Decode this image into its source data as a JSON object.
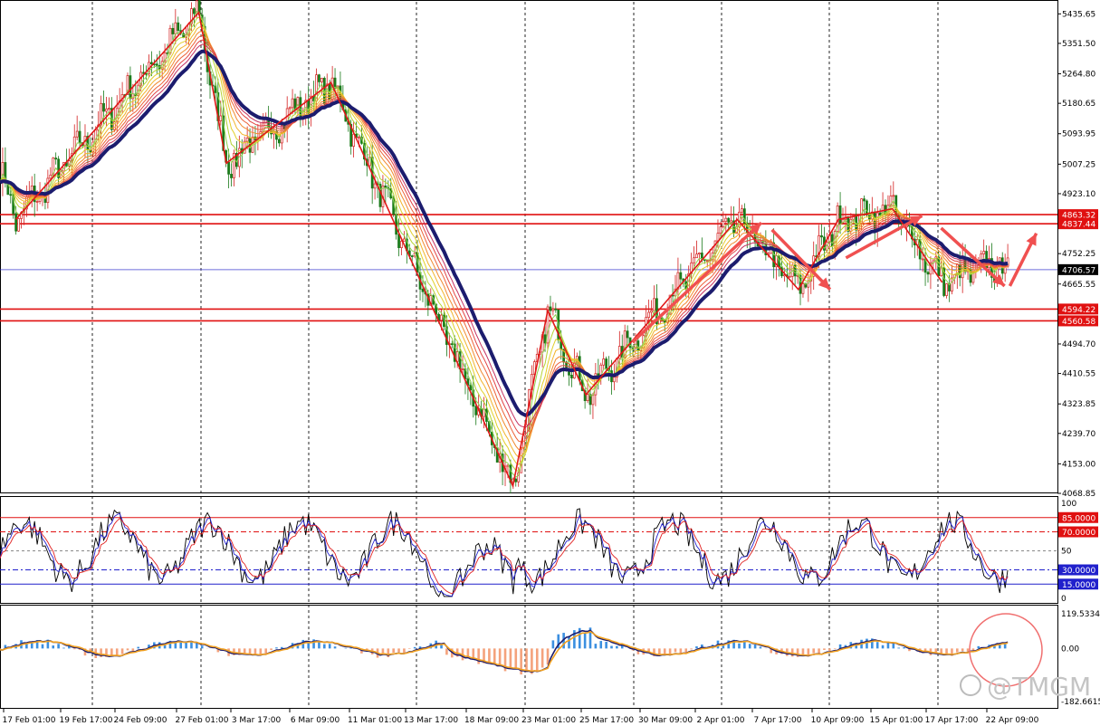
{
  "chart_data": [
    {
      "type": "candlestick",
      "panel": "price",
      "y_ticks": [
        5435.65,
        5351.5,
        5264.8,
        5180.65,
        5093.95,
        5007.25,
        4923.1,
        4837.44,
        4752.25,
        4706.57,
        4665.55,
        4594.22,
        4560.58,
        4494.7,
        4410.55,
        4323.85,
        4239.7,
        4153.0,
        4068.85
      ],
      "ylim": [
        4068.85,
        5470
      ],
      "horizontal_levels": [
        {
          "value": 4863.32,
          "label": "4863.32",
          "color": "#e01010"
        },
        {
          "value": 4837.44,
          "label": "4837.44",
          "color": "#e01010"
        },
        {
          "value": 4706.57,
          "label": "4706.57",
          "color": "#3333cc"
        },
        {
          "value": 4594.22,
          "label": "4594.22",
          "color": "#e01010"
        },
        {
          "value": 4560.58,
          "label": "4560.58",
          "color": "#e01010"
        }
      ],
      "zigzag": [
        [
          0.015,
          4850
        ],
        [
          0.188,
          5440
        ],
        [
          0.214,
          5010
        ],
        [
          0.313,
          5240
        ],
        [
          0.485,
          4090
        ],
        [
          0.518,
          4590
        ],
        [
          0.554,
          4350
        ],
        [
          0.697,
          4850
        ],
        [
          0.755,
          4650
        ],
        [
          0.793,
          4850
        ],
        [
          0.844,
          4880
        ],
        [
          0.891,
          4670
        ]
      ],
      "colors": {
        "up": "#d42020",
        "down": "#1a7a1a",
        "zigzag": "#e01818",
        "ma_slow": "#1c1c6e",
        "arrows": "#f05050"
      }
    },
    {
      "type": "line",
      "panel": "stochastic",
      "y_ticks": [
        100,
        85,
        70,
        50,
        30,
        15,
        0
      ],
      "levels": [
        {
          "value": 85,
          "label": "85.0000",
          "color": "#e01010"
        },
        {
          "value": 70,
          "label": "70.0000",
          "color": "#e01010"
        },
        {
          "value": 30,
          "label": "30.0000",
          "color": "#2020cc"
        },
        {
          "value": 15,
          "label": "15.0000",
          "color": "#2020cc"
        }
      ],
      "ylim": [
        0,
        100
      ]
    },
    {
      "type": "histogram",
      "panel": "macd",
      "y_ticks": [
        119.5334,
        0.0,
        -182.6615
      ],
      "ylim": [
        -182.6615,
        119.5334
      ]
    }
  ],
  "x_ticks": [
    "17 Feb 01:00",
    "19 Feb 17:00",
    "24 Feb 09:00",
    "27 Feb 01:00",
    "3 Mar 17:00",
    "6 Mar 09:00",
    "11 Mar 01:00",
    "13 Mar 17:00",
    "18 Mar 09:00",
    "23 Mar 01:00",
    "25 Mar 17:00",
    "30 Mar 09:00",
    "2 Apr 01:00",
    "7 Apr 17:00",
    "10 Apr 09:00",
    "15 Apr 01:00",
    "17 Apr 17:00",
    "22 Apr 09:00"
  ],
  "watermark": "@TMGM"
}
